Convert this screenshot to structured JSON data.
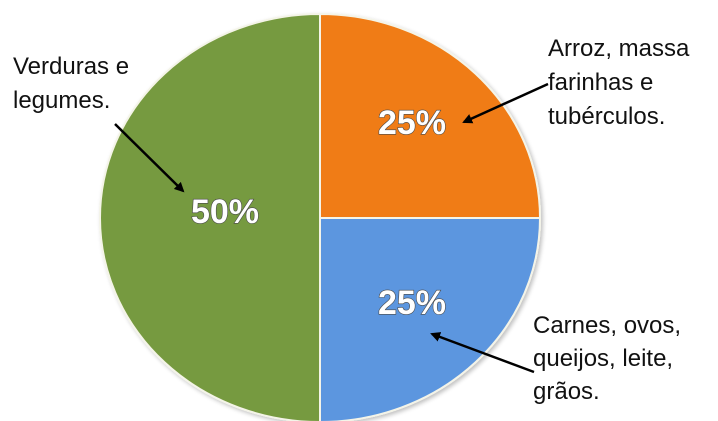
{
  "chart_data": {
    "type": "pie",
    "title": "",
    "slices": [
      {
        "key": "arroz",
        "percent": 25,
        "value_label": "25%",
        "label_lines": [
          "Arroz, massa",
          "farinhas e",
          "tubérculos."
        ],
        "color": "#F07C14"
      },
      {
        "key": "carnes",
        "percent": 25,
        "value_label": "25%",
        "label_lines": [
          "Carnes, ovos,",
          "queijos, leite,",
          "grãos."
        ],
        "color": "#5B96DF"
      },
      {
        "key": "verduras",
        "percent": 50,
        "value_label": "50%",
        "label_lines": [
          "Verduras e",
          "legumes."
        ],
        "color": "#769A3F"
      }
    ],
    "start_position": "top, clockwise",
    "legend": "none"
  }
}
